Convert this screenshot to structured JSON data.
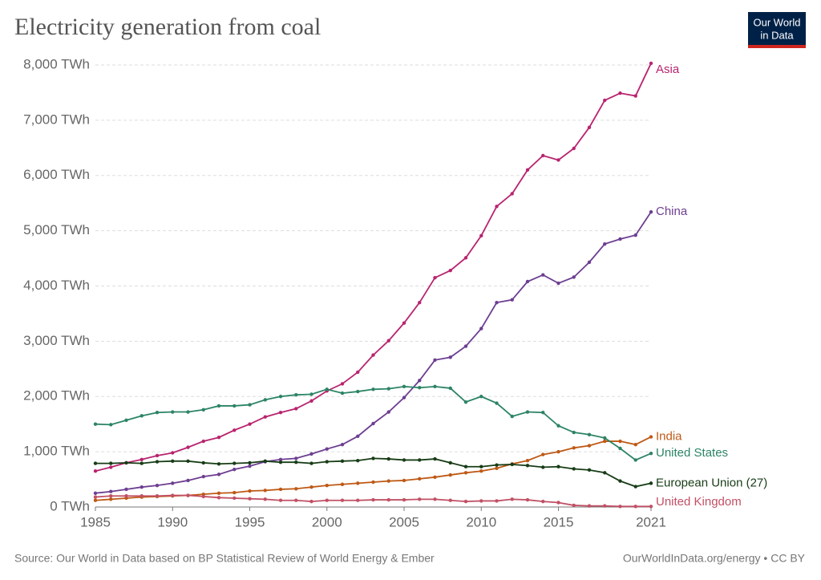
{
  "chart_data": {
    "type": "line",
    "title": "Electricity generation from coal",
    "logo": [
      "Our World",
      "in Data"
    ],
    "source": "Source: Our World in Data based on BP Statistical Review of World Energy & Ember",
    "credit": "OurWorldInData.org/energy • CC BY",
    "x": [
      1985,
      1986,
      1987,
      1988,
      1989,
      1990,
      1991,
      1992,
      1993,
      1994,
      1995,
      1996,
      1997,
      1998,
      1999,
      2000,
      2001,
      2002,
      2003,
      2004,
      2005,
      2006,
      2007,
      2008,
      2009,
      2010,
      2011,
      2012,
      2013,
      2014,
      2015,
      2016,
      2017,
      2018,
      2019,
      2020,
      2021
    ],
    "xlim": [
      1985,
      2021
    ],
    "xticks": [
      1985,
      1990,
      1995,
      2000,
      2005,
      2010,
      2015,
      2021
    ],
    "ylim": [
      0,
      8000
    ],
    "yticks": [
      {
        "value": 0,
        "label": "0 TWh"
      },
      {
        "value": 1000,
        "label": "1,000 TWh"
      },
      {
        "value": 2000,
        "label": "2,000 TWh"
      },
      {
        "value": 3000,
        "label": "3,000 TWh"
      },
      {
        "value": 4000,
        "label": "4,000 TWh"
      },
      {
        "value": 5000,
        "label": "5,000 TWh"
      },
      {
        "value": 6000,
        "label": "6,000 TWh"
      },
      {
        "value": 7000,
        "label": "7,000 TWh"
      },
      {
        "value": 8000,
        "label": "8,000 TWh"
      }
    ],
    "grid": true,
    "series": [
      {
        "name": "Asia",
        "color": "#b8246f",
        "values": [
          650,
          720,
          800,
          860,
          930,
          980,
          1080,
          1190,
          1260,
          1390,
          1500,
          1630,
          1710,
          1780,
          1920,
          2100,
          2230,
          2440,
          2750,
          3010,
          3330,
          3700,
          4150,
          4280,
          4510,
          4910,
          5440,
          5670,
          6100,
          6360,
          6280,
          6490,
          6870,
          7360,
          7490,
          7440,
          8030
        ]
      },
      {
        "name": "China",
        "color": "#6d3e91",
        "values": [
          250,
          280,
          320,
          360,
          390,
          430,
          480,
          550,
          590,
          680,
          740,
          820,
          860,
          880,
          960,
          1050,
          1130,
          1280,
          1510,
          1720,
          1980,
          2290,
          2660,
          2710,
          2910,
          3230,
          3700,
          3750,
          4080,
          4200,
          4050,
          4160,
          4430,
          4760,
          4850,
          4920,
          5340
        ]
      },
      {
        "name": "India",
        "color": "#be5915",
        "values": [
          120,
          140,
          160,
          180,
          190,
          200,
          210,
          230,
          250,
          260,
          290,
          300,
          320,
          330,
          360,
          390,
          410,
          430,
          450,
          470,
          480,
          510,
          540,
          580,
          620,
          650,
          700,
          780,
          840,
          950,
          1000,
          1070,
          1110,
          1190,
          1190,
          1130,
          1270
        ]
      },
      {
        "name": "United States",
        "color": "#2c8465",
        "values": [
          1500,
          1490,
          1570,
          1650,
          1710,
          1720,
          1720,
          1760,
          1830,
          1830,
          1850,
          1940,
          2000,
          2030,
          2040,
          2130,
          2060,
          2090,
          2130,
          2140,
          2180,
          2160,
          2180,
          2150,
          1900,
          2000,
          1880,
          1640,
          1720,
          1710,
          1470,
          1350,
          1310,
          1250,
          1060,
          850,
          970
        ]
      },
      {
        "name": "European Union (27)",
        "color": "#173d16",
        "values": [
          790,
          790,
          800,
          790,
          820,
          830,
          830,
          800,
          780,
          790,
          800,
          830,
          810,
          810,
          790,
          820,
          830,
          840,
          880,
          870,
          850,
          850,
          870,
          800,
          730,
          730,
          760,
          770,
          750,
          720,
          730,
          690,
          670,
          620,
          470,
          370,
          430
        ]
      },
      {
        "name": "United Kingdom",
        "color": "#c15065",
        "values": [
          180,
          200,
          200,
          200,
          200,
          210,
          210,
          190,
          170,
          160,
          150,
          140,
          120,
          120,
          100,
          120,
          120,
          120,
          130,
          130,
          130,
          140,
          140,
          120,
          100,
          110,
          110,
          140,
          130,
          100,
          80,
          30,
          20,
          20,
          10,
          10,
          10
        ]
      }
    ]
  }
}
